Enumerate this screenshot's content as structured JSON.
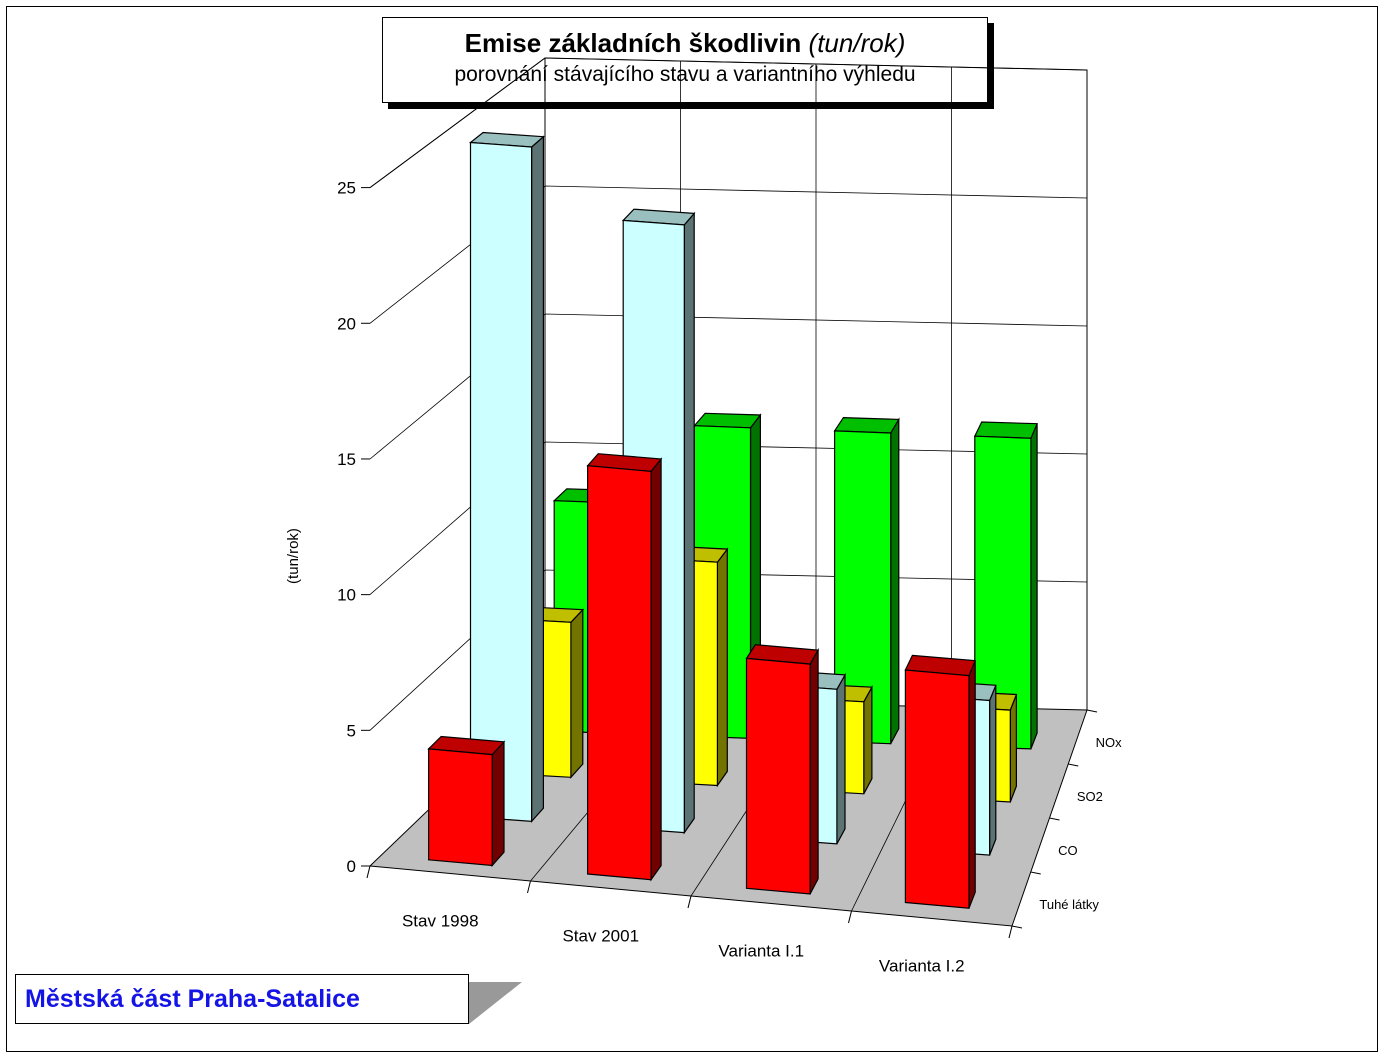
{
  "header": {
    "title": "Emise základních škodlivin",
    "title_unit": "(tun/rok)",
    "subtitle": "porovnání stávajícího stavu a variantního výhledu"
  },
  "badge": {
    "label": "Městská část Praha-Satalice",
    "color": "#1414e6"
  },
  "chart_data": {
    "type": "bar",
    "title": "Emise základních škodlivin (tun/rok)",
    "subtitle": "porovnání stávajícího stavu a variantního výhledu",
    "ylabel": "(tun/rok)",
    "ylim": [
      0,
      25
    ],
    "yticks": [
      0,
      5,
      10,
      15,
      20,
      25
    ],
    "grid": true,
    "categories": [
      "Stav 1998",
      "Stav 2001",
      "Varianta I.1",
      "Varianta I.2"
    ],
    "series": [
      {
        "name": "Tuhé látky",
        "color": "#ff0000",
        "values": [
          4.1,
          15.1,
          8.5,
          8.6
        ]
      },
      {
        "name": "CO",
        "color": "#ccffff",
        "values": [
          25.3,
          22.8,
          5.8,
          5.8
        ]
      },
      {
        "name": "SO2",
        "color": "#ffff00",
        "values": [
          5.9,
          8.5,
          3.5,
          3.5
        ]
      },
      {
        "name": "NOx",
        "color": "#00ff00",
        "values": [
          8.9,
          12.0,
          12.0,
          12.0
        ]
      }
    ]
  }
}
